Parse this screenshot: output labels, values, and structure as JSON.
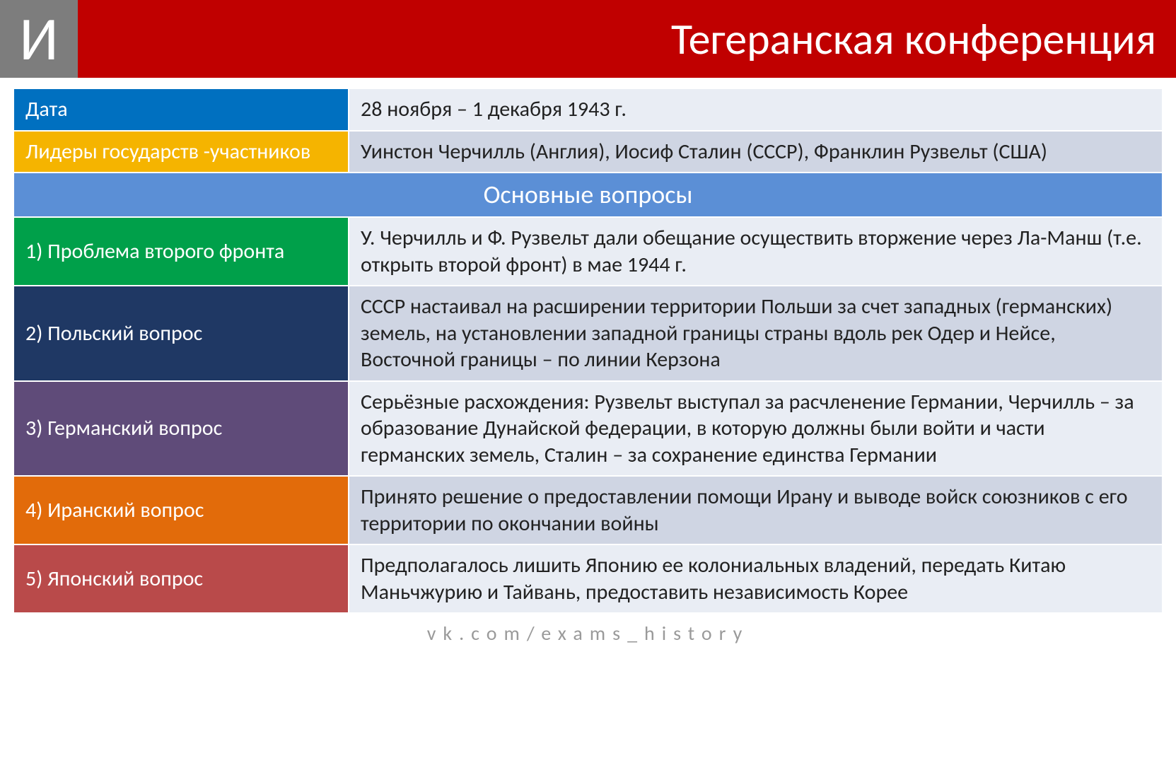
{
  "header": {
    "badge": "И",
    "title": "Тегеранская конференция"
  },
  "colors": {
    "badge_bg": "#7d7d7d",
    "title_bg": "#c00000",
    "row_date_label": "#0070c0",
    "row_date_value": "#e9edf4",
    "row_leaders_label": "#f5b400",
    "row_leaders_value": "#cfd5e3",
    "section_bg": "#5b8fd6",
    "q1_label": "#00a04a",
    "q1_value": "#e9edf4",
    "q2_label": "#1f3864",
    "q2_value": "#cfd5e3",
    "q3_label": "#5f4b79",
    "q3_value": "#e9edf4",
    "q4_label": "#e26b0a",
    "q4_value": "#cfd5e3",
    "q5_label": "#b94a4a",
    "q5_value": "#e9edf4"
  },
  "rows": {
    "date_label": "Дата",
    "date_value": "28 ноября – 1 декабря 1943 г.",
    "leaders_label": "Лидеры государств -участников",
    "leaders_value": "Уинстон Черчилль (Англия), Иосиф Сталин (СССР), Франклин Рузвельт (США)"
  },
  "section_title": "Основные вопросы",
  "questions": {
    "q1_label": "1) Проблема второго фронта",
    "q1_value": "У. Черчилль и Ф. Рузвельт дали обещание осуществить вторжение через Ла-Манш (т.е. открыть второй фронт) в мае 1944 г.",
    "q2_label": "2) Польский вопрос",
    "q2_value": "СССР настаивал на расширении территории Польши за счет западных (германских) земель, на установлении западной границы страны вдоль рек Одер и Нейсе, Восточной границы – по линии Керзона",
    "q3_label": "3) Германский вопрос",
    "q3_value": "Серьёзные расхождения: Рузвельт выступал за расчленение Германии, Черчилль – за образование Дунайской федерации, в которую должны были войти и части германских земель, Сталин – за сохранение единства Германии",
    "q4_label": "4) Иранский вопрос",
    "q4_value": "Принято решение о предоставлении помощи Ирану и выводе войск союзников с его территории по окончании войны",
    "q5_label": "5) Японский вопрос",
    "q5_value": "Предполагалось лишить Японию ее колониальных владений, передать Китаю Маньчжурию и Тайвань, предоставить независимость Корее"
  },
  "footer": "vk.com/exams_history"
}
